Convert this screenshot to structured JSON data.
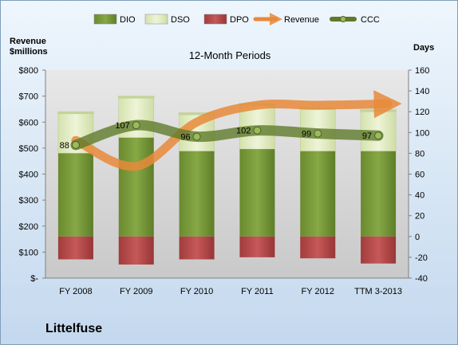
{
  "company": "Littelfuse",
  "chart_data": {
    "type": "bar",
    "title": "12-Month Periods",
    "ylabel_left": "Revenue\n$millions",
    "ylabel_right": "Days",
    "categories": [
      "FY 2008",
      "FY 2009",
      "FY 2010",
      "FY 2011",
      "FY 2012",
      "TTM 3-2013"
    ],
    "left_axis": {
      "min": 0,
      "max": 800,
      "step": 100,
      "ticks": [
        "$-",
        "$100",
        "$200",
        "$300",
        "$400",
        "$500",
        "$600",
        "$700",
        "$800"
      ]
    },
    "right_axis": {
      "min": -40,
      "max": 160,
      "step": 20
    },
    "series": [
      {
        "name": "DIO",
        "type": "stacked-bar",
        "axis": "right",
        "color": "#7a9a3a",
        "values": [
          80,
          95,
          82,
          84,
          82,
          82
        ]
      },
      {
        "name": "DSO",
        "type": "stacked-bar",
        "axis": "right",
        "color": "#e3edc6",
        "values": [
          38,
          38,
          35,
          42,
          40,
          38
        ]
      },
      {
        "name": "DPO",
        "type": "negative-bar",
        "axis": "right",
        "color": "#b84a4a",
        "values": [
          -22,
          -27,
          -22,
          -20,
          -21,
          -26
        ]
      },
      {
        "name": "Revenue",
        "type": "line",
        "axis": "left",
        "color": "#e8893a",
        "values": [
          530,
          430,
          600,
          665,
          665,
          670
        ]
      },
      {
        "name": "CCC",
        "type": "line",
        "axis": "right",
        "color": "#5f7a2a",
        "values": [
          88,
          107,
          96,
          102,
          99,
          97
        ]
      }
    ],
    "data_labels": {
      "series": "CCC",
      "labels": [
        "88",
        "107",
        "96",
        "102",
        "99",
        "97"
      ]
    },
    "legend": {
      "position": "top",
      "items": [
        "DIO",
        "DSO",
        "DPO",
        "Revenue",
        "CCC"
      ]
    },
    "grid": false
  }
}
